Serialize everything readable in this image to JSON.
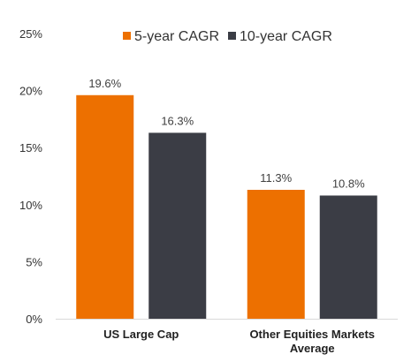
{
  "chart_data": {
    "type": "bar",
    "categories": [
      "US Large Cap",
      "Other Equities Markets Average"
    ],
    "category_lines": [
      [
        "US Large Cap"
      ],
      [
        "Other Equities Markets",
        "Average"
      ]
    ],
    "series": [
      {
        "name": "5-year CAGR",
        "values": [
          19.6,
          11.3
        ],
        "labels": [
          "19.6%",
          "11.3%"
        ],
        "color": "#ED7000"
      },
      {
        "name": "10-year CAGR",
        "values": [
          16.3,
          10.8
        ],
        "labels": [
          "16.3%",
          "10.8%"
        ],
        "color": "#3B3D45"
      }
    ],
    "ylim": [
      0,
      25
    ],
    "yticks": [
      0,
      5,
      10,
      15,
      20,
      25
    ],
    "ytick_labels": [
      "0%",
      "5%",
      "10%",
      "15%",
      "20%",
      "25%"
    ],
    "grid": false,
    "legend_position": "top-right",
    "axis_color": "#D9D9D9"
  }
}
